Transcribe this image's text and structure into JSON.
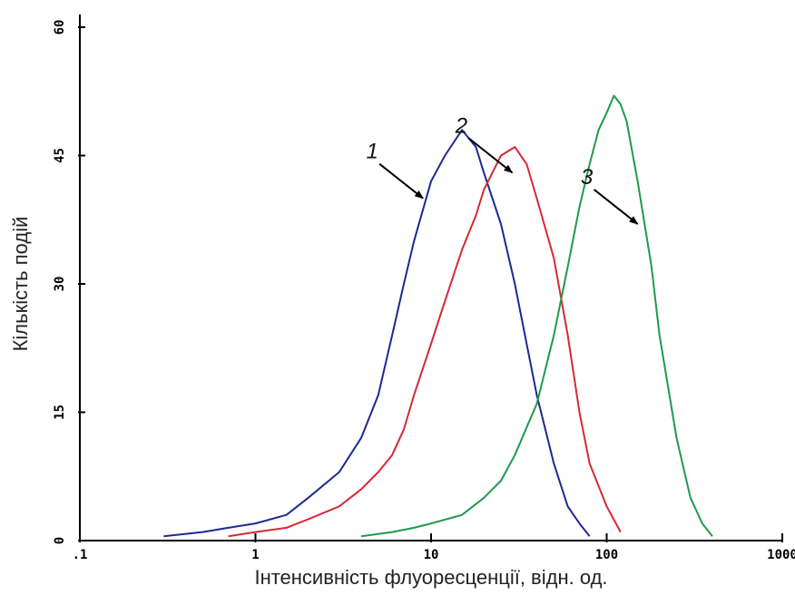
{
  "chart_data": {
    "type": "line",
    "xlabel": "Інтенсивність флуоресценції, відн. од.",
    "ylabel": "Кількість подій",
    "x_scale": "log",
    "xlim": [
      0.1,
      1000
    ],
    "ylim": [
      0,
      60
    ],
    "x_ticks": [
      0.1,
      1,
      10,
      100,
      1000
    ],
    "x_tick_labels": [
      ".1",
      "1",
      "10",
      "100",
      "1000"
    ],
    "y_ticks": [
      0,
      15,
      30,
      45,
      60
    ],
    "y_tick_labels": [
      "0",
      "15",
      "30",
      "45",
      "60"
    ],
    "grid": false,
    "series": [
      {
        "color": "#1c2a8f",
        "x": [
          0.3,
          0.5,
          0.7,
          1,
          1.5,
          2,
          3,
          4,
          5,
          6,
          7,
          8,
          10,
          12,
          15,
          18,
          20,
          25,
          30,
          35,
          40,
          50,
          60,
          70,
          80
        ],
        "y": [
          0.5,
          1,
          1.5,
          2,
          3,
          5,
          8,
          12,
          17,
          24,
          30,
          35,
          42,
          45,
          48,
          46,
          43,
          37,
          30,
          23,
          17,
          9,
          4,
          2,
          0.5
        ]
      },
      {
        "color": "#d42a35",
        "x": [
          0.7,
          1,
          1.5,
          2,
          3,
          4,
          5,
          6,
          7,
          8,
          10,
          12,
          15,
          18,
          20,
          25,
          30,
          35,
          40,
          50,
          60,
          70,
          80,
          100,
          120
        ],
        "y": [
          0.5,
          1,
          1.5,
          2.5,
          4,
          6,
          8,
          10,
          13,
          17,
          23,
          28,
          34,
          38,
          41,
          45,
          46,
          44,
          40,
          33,
          24,
          15,
          9,
          4,
          1
        ]
      },
      {
        "color": "#1f9a4c",
        "x": [
          4,
          6,
          8,
          10,
          15,
          20,
          25,
          30,
          40,
          50,
          60,
          70,
          80,
          90,
          100,
          110,
          120,
          130,
          150,
          180,
          200,
          250,
          300,
          350,
          400
        ],
        "y": [
          0.5,
          1,
          1.5,
          2,
          3,
          5,
          7,
          10,
          16,
          24,
          32,
          39,
          44,
          48,
          50,
          52,
          51,
          49,
          42,
          32,
          24,
          12,
          5,
          2,
          0.5
        ]
      }
    ],
    "annotations": [
      {
        "text": "1",
        "at_x": 9,
        "at_y": 40
      },
      {
        "text": "2",
        "at_x": 29,
        "at_y": 43
      },
      {
        "text": "3",
        "at_x": 150,
        "at_y": 37
      }
    ]
  }
}
